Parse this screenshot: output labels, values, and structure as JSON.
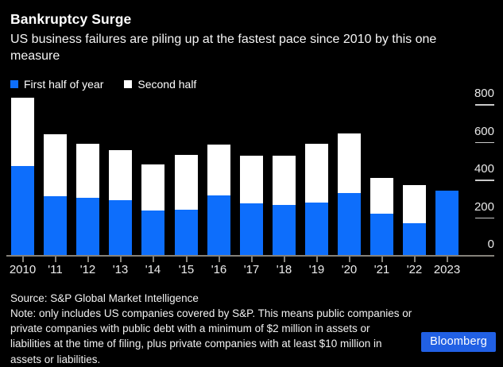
{
  "header": {
    "title": "Bankruptcy Surge",
    "subtitle": "US business failures are piling up at the fastest pace since 2010 by this one measure"
  },
  "chart_data": {
    "type": "bar",
    "stacked": true,
    "title": "Bankruptcy Surge",
    "categories": [
      "2010",
      "'11",
      "'12",
      "'13",
      "'14",
      "'15",
      "'16",
      "'17",
      "'18",
      "'19",
      "'20",
      "'21",
      "'22",
      "2023"
    ],
    "series": [
      {
        "name": "First half of year",
        "color": "#0d6efc",
        "values": [
          470,
          310,
          305,
          290,
          235,
          240,
          315,
          275,
          265,
          280,
          330,
          220,
          168,
          340
        ]
      },
      {
        "name": "Second half",
        "color": "#ffffff",
        "values": [
          365,
          330,
          285,
          268,
          245,
          290,
          270,
          250,
          260,
          310,
          315,
          190,
          204,
          0
        ]
      }
    ],
    "ylim": [
      0,
      880
    ],
    "yticks": [
      0,
      200,
      400,
      600,
      800
    ],
    "ylabel": "",
    "xlabel": "",
    "grid": false,
    "legend_position": "top",
    "y_axis_side": "right",
    "background_color": "#000000"
  },
  "footer": {
    "source": "Source: S&P Global Market Intelligence",
    "note": "Note: only includes US companies covered by S&P. This means public companies or private companies with public debt with a minimum of $2 million in assets or liabilities at the time of filing, plus private companies with at least $10 million in assets or liabilities.",
    "brand": "Bloomberg"
  }
}
